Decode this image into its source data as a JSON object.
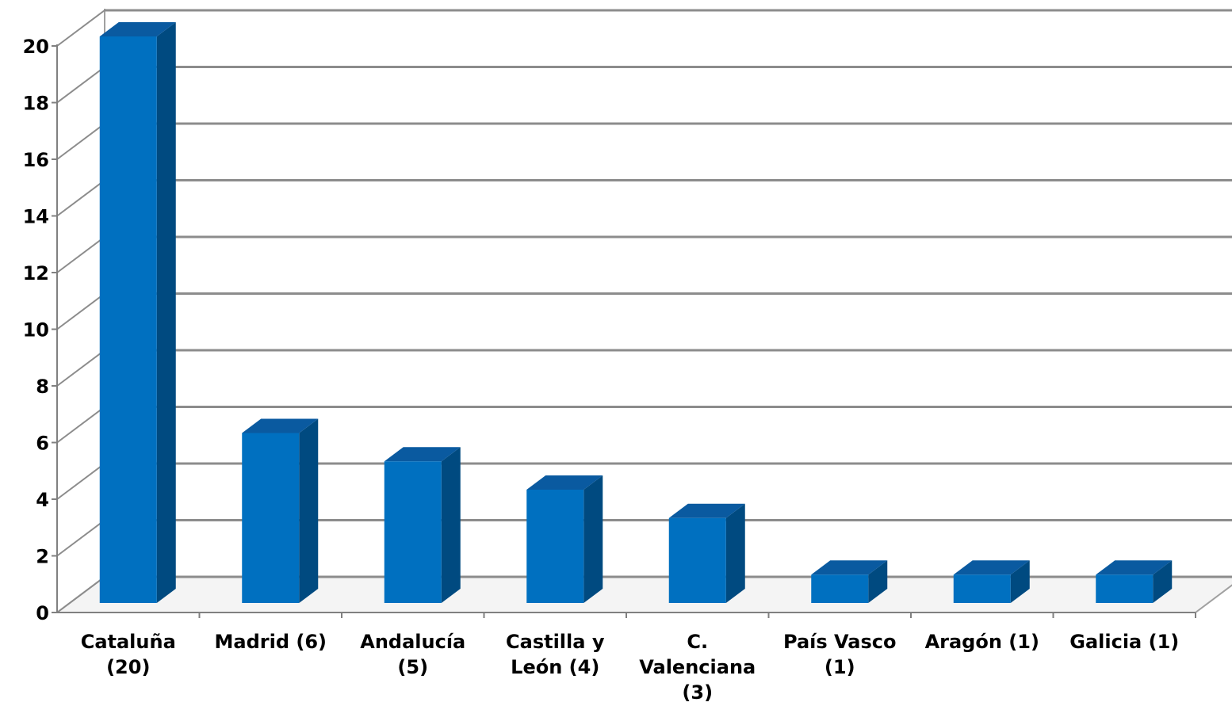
{
  "chart_data": {
    "type": "bar",
    "categories": [
      [
        "Cataluña",
        "(20)"
      ],
      [
        "Madrid (6)"
      ],
      [
        "Andalucía",
        "(5)"
      ],
      [
        "Castilla y",
        "León (4)"
      ],
      [
        "C.",
        "Valenciana",
        "(3)"
      ],
      [
        "País Vasco",
        "(1)"
      ],
      [
        "Aragón (1)"
      ],
      [
        "Galicia (1)"
      ]
    ],
    "values": [
      20,
      6,
      5,
      4,
      3,
      1,
      1,
      1
    ],
    "ylim": [
      0,
      20
    ],
    "yticks": [
      0,
      2,
      4,
      6,
      8,
      10,
      12,
      14,
      16,
      18,
      20
    ],
    "grid": true,
    "style": "3d-column",
    "colors": {
      "bar_front": "#0070c0",
      "bar_top": "#0a5aa0",
      "bar_side": "#004a80",
      "grid": "#8c8c8c",
      "wall": "#ffffff"
    }
  }
}
